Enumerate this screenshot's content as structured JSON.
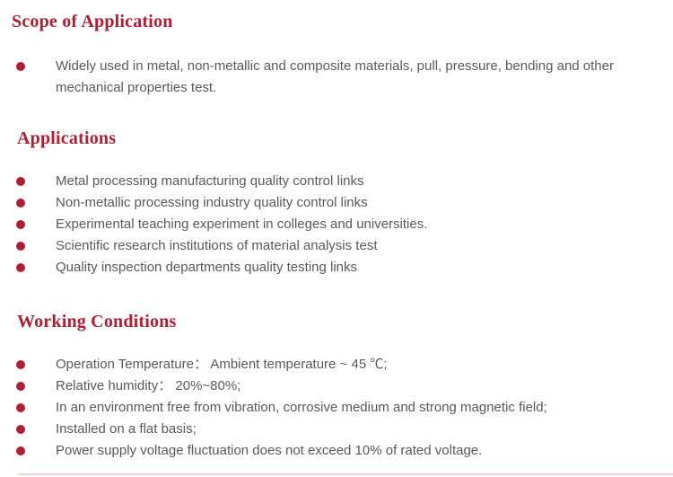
{
  "page": {
    "background": "#ffffff",
    "accent_color": "#b01e33",
    "body_text_color": "#595959"
  },
  "sections": [
    {
      "title": "Scope of Application",
      "items": [
        "Widely used in metal, non-metallic and composite materials, pull, pressure, bending and other mechanical properties test."
      ]
    },
    {
      "title": "Applications",
      "items": [
        "Metal processing manufacturing quality control links",
        "Non-metallic processing industry quality control links",
        "Experimental teaching experiment in colleges and universities.",
        "Scientific research institutions of material analysis test",
        "Quality inspection departments quality testing links"
      ]
    },
    {
      "title": "Working Conditions",
      "items": [
        "Operation Temperature： Ambient temperature ~ 45 ℃;",
        "Relative humidity： 20%~80%;",
        "In an environment free from vibration, corrosive medium and strong magnetic field;",
        "Installed on a flat basis;",
        "Power supply voltage fluctuation does not exceed 10% of rated voltage."
      ]
    }
  ]
}
